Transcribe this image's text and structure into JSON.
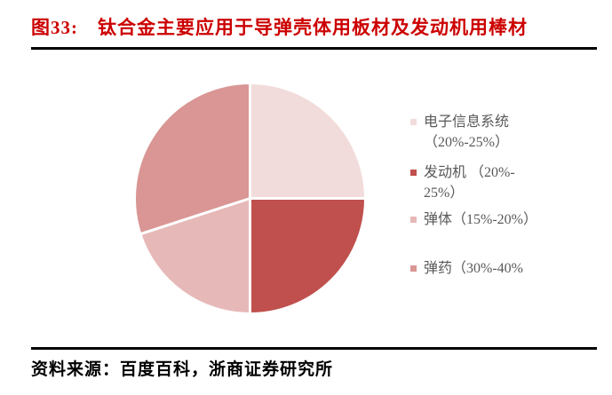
{
  "header": {
    "figure_label": "图33:",
    "title": "钛合金主要应用于导弹壳体用板材及发动机用棒材"
  },
  "footer": {
    "source": "资料来源：百度百科，浙商证券研究所"
  },
  "colors": {
    "title_red": "#CC0000",
    "rule_black": "#000000",
    "legend_text": "#595959",
    "background": "#FFFFFF",
    "slice_separator": "#FFFFFF"
  },
  "chart_data": {
    "type": "pie",
    "title": "",
    "categories": [
      "电子信息系统",
      "发动机",
      "弹体",
      "弹药"
    ],
    "share_labels": [
      "20%-25%",
      "20%-25%",
      "15%-20%",
      "30%-40%"
    ],
    "values": [
      25,
      25,
      20,
      30
    ],
    "colors": [
      "#F2DCDB",
      "#C0504D",
      "#E6B9B8",
      "#D99694"
    ],
    "start_angle": 0,
    "direction": "clockwise",
    "legend_position": "right",
    "slice_names": [
      "electronic-info-system",
      "engine",
      "missile-body",
      "ammunition"
    ],
    "legend_entries": [
      {
        "lines": [
          "电子信息系统",
          "（20%-25%）"
        ]
      },
      {
        "lines": [
          "发动机 （20%-",
          "25%）"
        ]
      },
      {
        "lines": [
          "弹体（15%-20%）"
        ]
      },
      {
        "lines": [
          "弹药（30%-40%"
        ]
      }
    ]
  }
}
